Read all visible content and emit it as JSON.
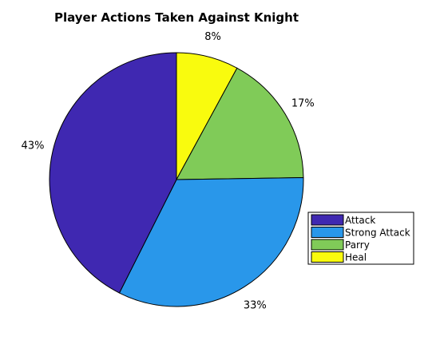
{
  "chart_data": {
    "type": "pie",
    "title": "Player Actions Taken Against Knight",
    "slices": [
      {
        "label": "Heal",
        "value": 8,
        "pct_label": "8%",
        "color": "#f9fb0e"
      },
      {
        "label": "Parry",
        "value": 17,
        "pct_label": "17%",
        "color": "#80cb58"
      },
      {
        "label": "Strong Attack",
        "value": 33,
        "pct_label": "33%",
        "color": "#2997ea"
      },
      {
        "label": "Attack",
        "value": 43,
        "pct_label": "43%",
        "color": "#3f28b1"
      }
    ],
    "legend": {
      "position": "right",
      "order": [
        "Attack",
        "Strong Attack",
        "Parry",
        "Heal"
      ]
    },
    "start_angle": "top",
    "direction": "clockwise"
  }
}
